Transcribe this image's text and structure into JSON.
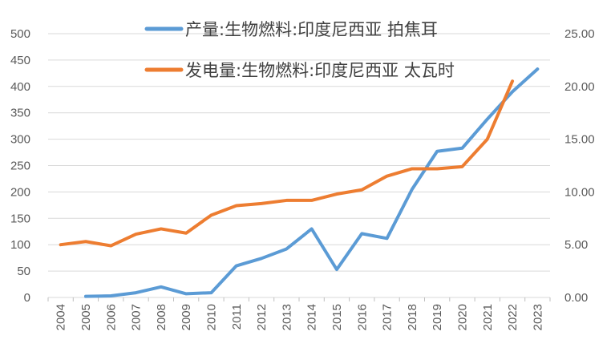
{
  "chart_data": {
    "type": "line",
    "title": "",
    "x": [
      "2004",
      "2005",
      "2006",
      "2007",
      "2008",
      "2009",
      "2010",
      "2011",
      "2012",
      "2013",
      "2014",
      "2015",
      "2016",
      "2017",
      "2018",
      "2019",
      "2020",
      "2021",
      "2022",
      "2023"
    ],
    "y_left": {
      "min": 0,
      "max": 500,
      "step": 50,
      "ticks": [
        "0",
        "50",
        "100",
        "150",
        "200",
        "250",
        "300",
        "350",
        "400",
        "450",
        "500"
      ]
    },
    "y_right": {
      "min": 0,
      "max": 25,
      "step": 5,
      "ticks": [
        "0.00",
        "5.00",
        "10.00",
        "15.00",
        "20.00",
        "25.00"
      ]
    },
    "grid": true,
    "legend_position": "top",
    "series": [
      {
        "name": "产量:生物燃料:印度尼西亚 拍焦耳",
        "axis": "left",
        "color": "#5b9bd5",
        "values": [
          null,
          2,
          3,
          9,
          20,
          7,
          9,
          60,
          74,
          92,
          130,
          53,
          121,
          112,
          205,
          277,
          283,
          338,
          390,
          433
        ]
      },
      {
        "name": "发电量:生物燃料:印度尼西亚 太瓦时",
        "axis": "right",
        "color": "#ed7d31",
        "values": [
          5.0,
          5.3,
          4.9,
          6.0,
          6.5,
          6.1,
          7.8,
          8.7,
          8.9,
          9.2,
          9.2,
          9.8,
          10.2,
          11.5,
          12.2,
          12.2,
          12.4,
          15.0,
          20.5,
          null
        ]
      }
    ]
  }
}
